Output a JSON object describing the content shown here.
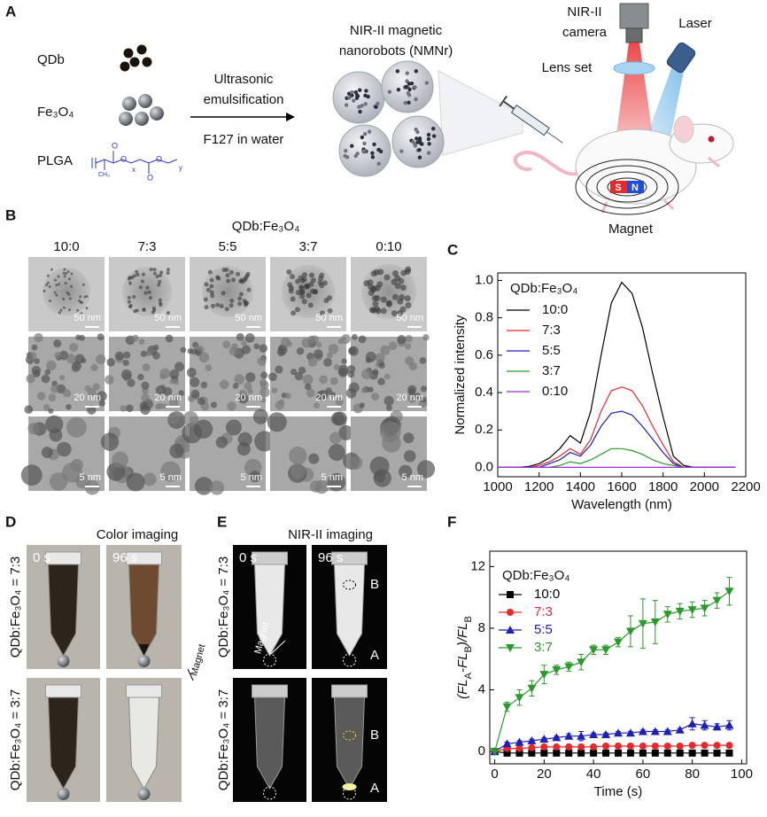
{
  "panel_labels": [
    "A",
    "B",
    "C",
    "D",
    "E",
    "F"
  ],
  "schematic": {
    "qdb": "QDb",
    "fe3o4": "Fe₃O₄",
    "plga": "PLGA",
    "plga_formula": [
      "O",
      "O",
      "O",
      "O",
      "x",
      "y",
      "CH₃"
    ],
    "process_top": [
      "Ultrasonic",
      "emulsification"
    ],
    "process_bottom": "F127 in water",
    "product": [
      "NIR-II magnetic",
      "nanorobots (NMNr)"
    ],
    "camera": [
      "NIR-II",
      "camera"
    ],
    "laser": "Laser",
    "lens": "Lens set",
    "magnet": "Magnet",
    "poles": [
      "S",
      "N"
    ]
  },
  "tem": {
    "title": "QDb:Fe₃O₄",
    "columns": [
      "10:0",
      "7:3",
      "5:5",
      "3:7",
      "0:10"
    ],
    "scale_bars": [
      "50 nm",
      "20 nm",
      "5 nm"
    ]
  },
  "color_imaging": {
    "title": "Color imaging",
    "times": [
      "0 s",
      "96 s"
    ],
    "rows": [
      "QDb:Fe₃O₄ = 7:3",
      "QDb:Fe₃O₄ = 3:7"
    ],
    "magnet": "Magnet"
  },
  "nir_imaging": {
    "title": "NIR-II imaging",
    "times": [
      "0 s",
      "96 s"
    ],
    "rows": [
      "QDb:Fe₃O₄ = 7:3",
      "QDb:Fe₃O₄ = 3:7"
    ],
    "magnet": "Magnet",
    "regions": [
      "B",
      "A"
    ]
  },
  "chart_data": [
    {
      "type": "line",
      "xlabel": "Wavelength (nm)",
      "ylabel": "Normalized intensity",
      "legend_title": "QDb:Fe₃O₄",
      "legend": "upper left",
      "legend_colored_labels": false,
      "markers": false,
      "xlim": [
        1000,
        2200
      ],
      "ylim": [
        -0.05,
        1.04
      ],
      "xticks": [
        1000,
        1200,
        1400,
        1600,
        1800,
        2000,
        2200
      ],
      "yticks": [
        {
          "value": 0,
          "label": "0.0"
        },
        {
          "value": 0.2,
          "label": "0.2"
        },
        {
          "value": 0.4,
          "label": "0.4"
        },
        {
          "value": 0.6,
          "label": "0.6"
        },
        {
          "value": 0.8,
          "label": "0.8"
        },
        {
          "value": 1,
          "label": "1.0"
        }
      ],
      "x": [
        1000,
        1050,
        1100,
        1150,
        1200,
        1250,
        1300,
        1350,
        1400,
        1450,
        1500,
        1550,
        1600,
        1650,
        1700,
        1750,
        1800,
        1850,
        1900,
        1950,
        2000,
        2050,
        2100,
        2150
      ],
      "series": [
        {
          "name": "10:0",
          "color": "#000000",
          "values": [
            0,
            0,
            0,
            0.005,
            0.02,
            0.05,
            0.1,
            0.17,
            0.13,
            0.3,
            0.6,
            0.88,
            0.99,
            0.93,
            0.75,
            0.5,
            0.27,
            0.06,
            0.01,
            0,
            0,
            0,
            0,
            0
          ]
        },
        {
          "name": "7:3",
          "color": "#e8292b",
          "values": [
            0,
            0,
            0,
            0,
            0.01,
            0.03,
            0.06,
            0.1,
            0.07,
            0.15,
            0.3,
            0.41,
            0.43,
            0.41,
            0.33,
            0.22,
            0.12,
            0.03,
            0,
            0,
            0,
            0,
            0,
            0
          ]
        },
        {
          "name": "5:5",
          "color": "#1d1fb5",
          "values": [
            0,
            0,
            0,
            0,
            0,
            0.02,
            0.04,
            0.08,
            0.06,
            0.12,
            0.22,
            0.29,
            0.3,
            0.28,
            0.22,
            0.15,
            0.08,
            0.02,
            0,
            0,
            0,
            0,
            0,
            0
          ]
        },
        {
          "name": "3:7",
          "color": "#2a9a2a",
          "values": [
            0,
            0,
            0,
            0,
            0,
            0,
            0.01,
            0.03,
            0.02,
            0.04,
            0.07,
            0.1,
            0.1,
            0.09,
            0.07,
            0.04,
            0.02,
            0.01,
            0,
            0,
            0,
            0,
            0,
            0
          ]
        },
        {
          "name": "0:10",
          "color": "#9b30d9",
          "values": [
            0,
            0,
            0,
            0,
            0,
            0,
            0,
            0,
            0,
            0,
            0,
            0,
            0,
            0,
            0,
            0,
            0,
            0,
            0,
            0,
            0,
            0,
            0,
            0
          ]
        }
      ]
    },
    {
      "type": "line",
      "xlabel": "Time (s)",
      "ylabel": [
        {
          "text": "(FL"
        },
        {
          "text": "A",
          "sub": true
        },
        {
          "text": "-FL"
        },
        {
          "text": "B",
          "sub": true
        },
        {
          "text": ")/FL"
        },
        {
          "text": "B",
          "sub": true
        }
      ],
      "legend_title": "QDb:Fe₃O₄",
      "legend": "upper left",
      "legend_colored_labels": true,
      "markers": true,
      "xlim": [
        -2,
        102
      ],
      "ylim": [
        -0.8,
        13
      ],
      "xticks": [
        0,
        20,
        40,
        60,
        80,
        100
      ],
      "yticks": [
        0,
        4,
        8,
        12
      ],
      "x": [
        0,
        5,
        10,
        15,
        20,
        25,
        30,
        35,
        40,
        45,
        50,
        55,
        60,
        65,
        70,
        75,
        80,
        85,
        90,
        95
      ],
      "series": [
        {
          "name": "10:0",
          "color": "#000000",
          "marker": "square",
          "values": [
            0,
            -0.1,
            -0.1,
            -0.1,
            -0.1,
            -0.1,
            -0.1,
            -0.1,
            -0.1,
            -0.1,
            -0.1,
            -0.1,
            -0.1,
            -0.1,
            -0.1,
            -0.1,
            -0.1,
            -0.1,
            -0.1,
            -0.1
          ],
          "errors": [
            0,
            0.05,
            0.05,
            0.05,
            0.05,
            0.05,
            0.05,
            0.05,
            0.05,
            0.05,
            0.05,
            0.05,
            0.05,
            0.05,
            0.05,
            0.05,
            0.05,
            0.05,
            0.05,
            0.05
          ]
        },
        {
          "name": "7:3",
          "color": "#e8292b",
          "marker": "circle",
          "values": [
            0,
            0.2,
            0.2,
            0.25,
            0.3,
            0.3,
            0.3,
            0.3,
            0.3,
            0.35,
            0.35,
            0.35,
            0.35,
            0.35,
            0.35,
            0.35,
            0.4,
            0.4,
            0.4,
            0.4
          ],
          "errors": [
            0,
            0.05,
            0.05,
            0.05,
            0.05,
            0.05,
            0.05,
            0.05,
            0.05,
            0.05,
            0.05,
            0.05,
            0.05,
            0.05,
            0.05,
            0.05,
            0.05,
            0.05,
            0.05,
            0.05
          ]
        },
        {
          "name": "5:5",
          "color": "#1d1fb5",
          "marker": "triangle-up",
          "values": [
            0,
            0.5,
            0.6,
            0.7,
            0.8,
            0.9,
            1.0,
            1.0,
            1.1,
            1.1,
            1.2,
            1.2,
            1.3,
            1.3,
            1.3,
            1.4,
            1.8,
            1.7,
            1.6,
            1.7
          ],
          "errors": [
            0,
            0.1,
            0.1,
            0.1,
            0.1,
            0.1,
            0.15,
            0.3,
            0.1,
            0.1,
            0.1,
            0.1,
            0.1,
            0.1,
            0.1,
            0.1,
            0.4,
            0.3,
            0.2,
            0.3
          ]
        },
        {
          "name": "3:7",
          "color": "#2a9a2a",
          "marker": "triangle-down",
          "values": [
            0,
            2.9,
            3.5,
            4.1,
            5.0,
            5.3,
            5.5,
            5.8,
            6.6,
            6.6,
            7.1,
            7.8,
            8.3,
            8.4,
            8.9,
            9.1,
            9.2,
            9.3,
            9.8,
            10.4
          ],
          "errors": [
            0,
            0.3,
            0.5,
            0.5,
            0.6,
            0.3,
            0.3,
            0.5,
            0.3,
            0.3,
            0.3,
            1.0,
            1.6,
            1.4,
            0.5,
            0.5,
            0.5,
            0.5,
            0.5,
            0.9
          ]
        }
      ]
    }
  ]
}
